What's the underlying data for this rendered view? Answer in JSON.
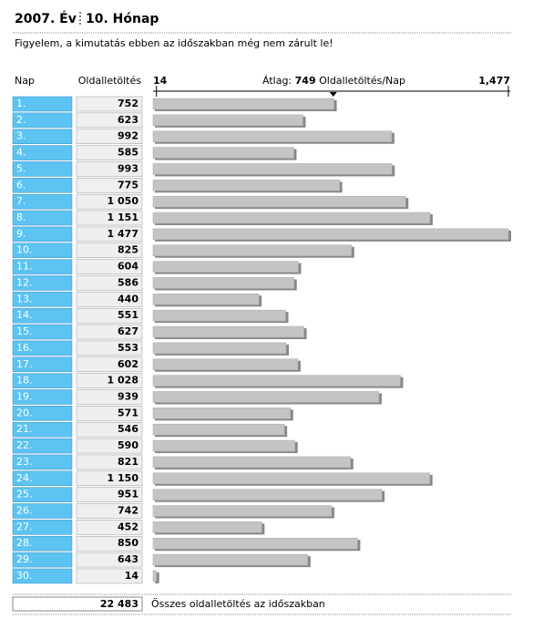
{
  "chart_data": {
    "type": "bar",
    "orientation": "horizontal",
    "title_year": "2007. Év",
    "title_month": "10. Hónap",
    "notice": "Figyelem, a kimutatás ebben az időszakban még nem zárult le!",
    "category_header": "Nap",
    "value_header": "Oldalletöltés",
    "categories": [
      "1.",
      "2.",
      "3.",
      "4.",
      "5.",
      "6.",
      "7.",
      "8.",
      "9.",
      "10.",
      "11.",
      "12.",
      "13.",
      "14.",
      "15.",
      "16.",
      "17.",
      "18.",
      "19.",
      "20.",
      "21.",
      "22.",
      "23.",
      "24.",
      "25.",
      "26.",
      "27.",
      "28.",
      "29.",
      "30."
    ],
    "values": [
      752,
      623,
      992,
      585,
      993,
      775,
      1050,
      1151,
      1477,
      825,
      604,
      586,
      440,
      551,
      627,
      553,
      602,
      1028,
      939,
      571,
      546,
      590,
      821,
      1150,
      951,
      742,
      452,
      850,
      643,
      14
    ],
    "value_labels": [
      "752",
      "623",
      "992",
      "585",
      "993",
      "775",
      "1 050",
      "1 151",
      "1 477",
      "825",
      "604",
      "586",
      "440",
      "551",
      "627",
      "553",
      "602",
      "1 028",
      "939",
      "571",
      "546",
      "590",
      "821",
      "1 150",
      "951",
      "742",
      "452",
      "850",
      "643",
      "14"
    ],
    "xlim": [
      0,
      1477
    ],
    "xticks": [
      14,
      {
        "value": 1477,
        "label": "1,477"
      }
    ],
    "average_label": "Átlag:",
    "average": 749,
    "average_unit": "Oldalletöltés/Nap",
    "total": {
      "value": 22483,
      "label": "22 483"
    },
    "total_label": "Összes oldalletöltés az időszakban",
    "day_color": "#5cc3f2",
    "bar_color": "#c4c4c4"
  }
}
